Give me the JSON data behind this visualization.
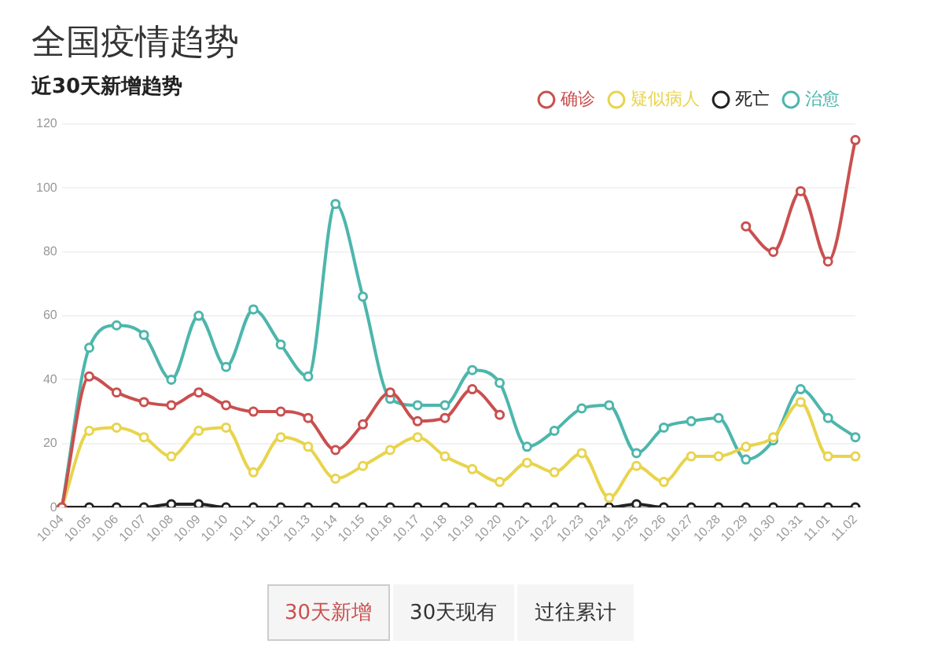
{
  "chart_data": {
    "type": "line",
    "title": "全国疫情趋势",
    "subtitle": "近30天新增趋势",
    "categories": [
      "10.04",
      "10.05",
      "10.06",
      "10.07",
      "10.08",
      "10.09",
      "10.10",
      "10.11",
      "10.12",
      "10.13",
      "10.14",
      "10.15",
      "10.16",
      "10.17",
      "10.18",
      "10.19",
      "10.20",
      "10.21",
      "10.22",
      "10.23",
      "10.24",
      "10.25",
      "10.26",
      "10.27",
      "10.28",
      "10.29",
      "10.30",
      "10.31",
      "11.01",
      "11.02"
    ],
    "series": [
      {
        "name": "确诊",
        "color": "#c9504f",
        "values": [
          0,
          41,
          36,
          33,
          32,
          36,
          32,
          30,
          30,
          28,
          18,
          26,
          36,
          27,
          28,
          37,
          29,
          null,
          null,
          null,
          null,
          null,
          null,
          null,
          null,
          88,
          80,
          99,
          77,
          115
        ]
      },
      {
        "name": "疑似病人",
        "color": "#e8d44d",
        "values": [
          0,
          24,
          25,
          22,
          16,
          24,
          25,
          11,
          22,
          19,
          9,
          13,
          18,
          22,
          16,
          12,
          8,
          14,
          11,
          17,
          3,
          13,
          8,
          16,
          16,
          19,
          22,
          33,
          16,
          16
        ]
      },
      {
        "name": "死亡",
        "color": "#222222",
        "values": [
          0,
          0,
          0,
          0,
          1,
          1,
          0,
          0,
          0,
          0,
          0,
          0,
          0,
          0,
          0,
          0,
          0,
          0,
          0,
          0,
          0,
          1,
          0,
          0,
          0,
          0,
          0,
          0,
          0,
          0
        ]
      },
      {
        "name": "治愈",
        "color": "#4db6ac",
        "values": [
          0,
          50,
          57,
          54,
          40,
          60,
          44,
          62,
          51,
          41,
          95,
          66,
          34,
          32,
          32,
          43,
          39,
          19,
          24,
          31,
          32,
          17,
          25,
          27,
          28,
          15,
          21,
          37,
          28,
          22
        ]
      }
    ],
    "ylim": [
      0,
      120
    ],
    "yticks": [
      0,
      20,
      40,
      60,
      80,
      100,
      120
    ],
    "grid": "y",
    "legend": "top right",
    "marker": "circle",
    "line_style": "solid",
    "annotations": [
      "30天新增",
      "30天现有",
      "过往累计"
    ]
  }
}
